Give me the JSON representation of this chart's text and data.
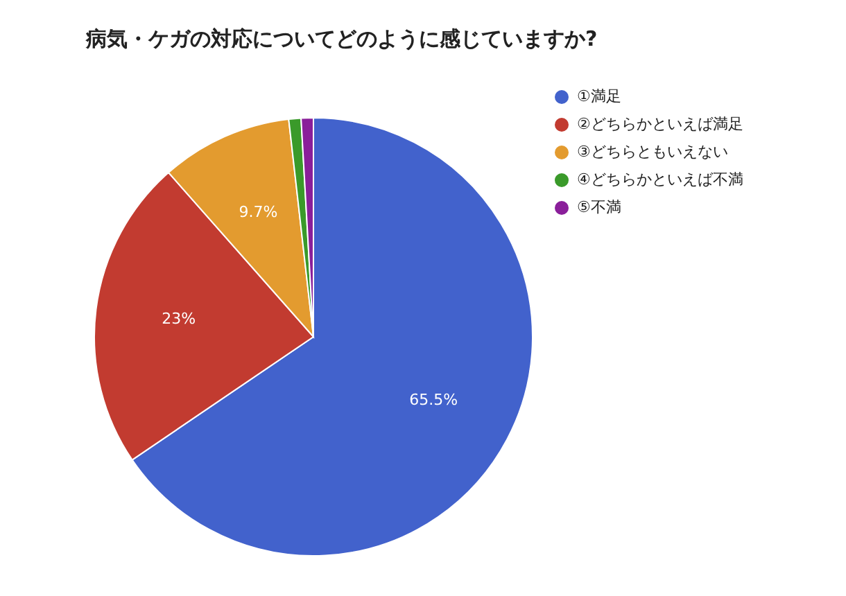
{
  "chart_data": {
    "type": "pie",
    "title": "病気・ケガの対応についてどのように感じていますか?",
    "categories": [
      "①満足",
      "②どちらかといえば満足",
      "③どちらともいえない",
      "④どちらかといえば不満",
      "⑤不満"
    ],
    "values": [
      65.5,
      23,
      9.7,
      0.9,
      0.9
    ],
    "colors": [
      "#4262cc",
      "#c23b30",
      "#e39b2f",
      "#3a9a2a",
      "#8a1f9a"
    ],
    "value_labels": [
      "65.5%",
      "23%",
      "9.7%",
      null,
      null
    ],
    "legend": "right"
  }
}
